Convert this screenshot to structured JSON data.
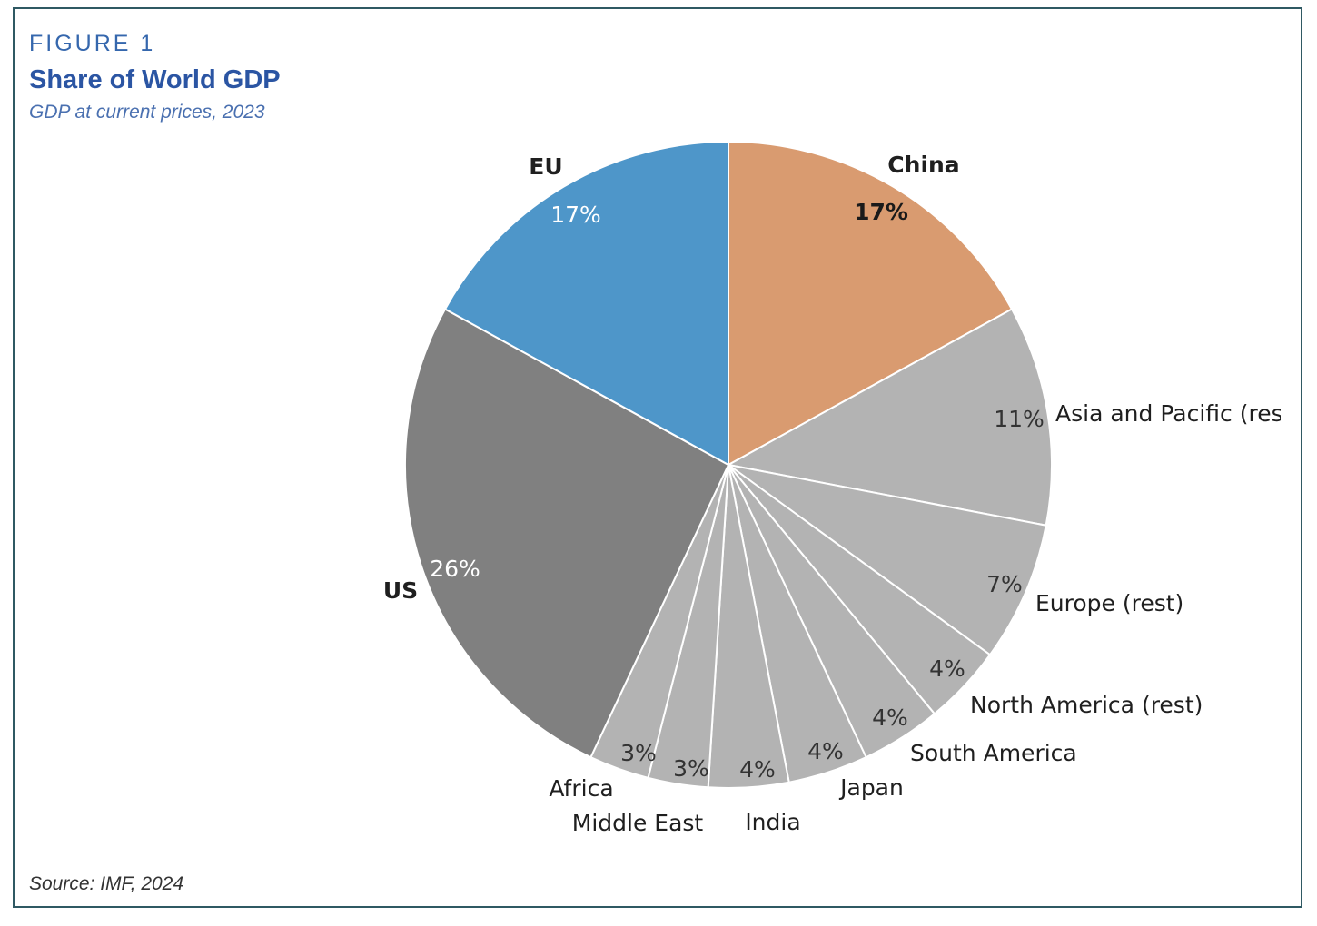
{
  "header": {
    "figure_label": "FIGURE 1",
    "title": "Share of World GDP",
    "subtitle": "GDP at current prices, 2023"
  },
  "footer": {
    "source": "Source: IMF, 2024"
  },
  "colors": {
    "frame": "#2f5963",
    "china": "#d99b70",
    "eu": "#4e96c9",
    "us": "#808080",
    "other": "#b3b3b3",
    "title": "#2b55a3"
  },
  "chart_data": {
    "type": "pie",
    "title": "Share of World GDP",
    "subtitle": "GDP at current prices, 2023",
    "unit": "percent",
    "slices": [
      {
        "name": "China",
        "value": 17,
        "label": "17%",
        "color": "#d99b70"
      },
      {
        "name": "Asia and Pacific (rest)",
        "value": 11,
        "label": "11%",
        "color": "#b3b3b3"
      },
      {
        "name": "Europe (rest)",
        "value": 7,
        "label": "7%",
        "color": "#b3b3b3"
      },
      {
        "name": "North America (rest)",
        "value": 4,
        "label": "4%",
        "color": "#b3b3b3"
      },
      {
        "name": "South America",
        "value": 4,
        "label": "4%",
        "color": "#b3b3b3"
      },
      {
        "name": "Japan",
        "value": 4,
        "label": "4%",
        "color": "#b3b3b3"
      },
      {
        "name": "India",
        "value": 4,
        "label": "4%",
        "color": "#b3b3b3"
      },
      {
        "name": "Middle East",
        "value": 3,
        "label": "3%",
        "color": "#b3b3b3"
      },
      {
        "name": "Africa",
        "value": 3,
        "label": "3%",
        "color": "#b3b3b3"
      },
      {
        "name": "US",
        "value": 26,
        "label": "26%",
        "color": "#808080"
      },
      {
        "name": "EU",
        "value": 17,
        "label": "17%",
        "color": "#4e96c9"
      }
    ],
    "start_angle": "12 o'clock",
    "direction": "clockwise"
  }
}
